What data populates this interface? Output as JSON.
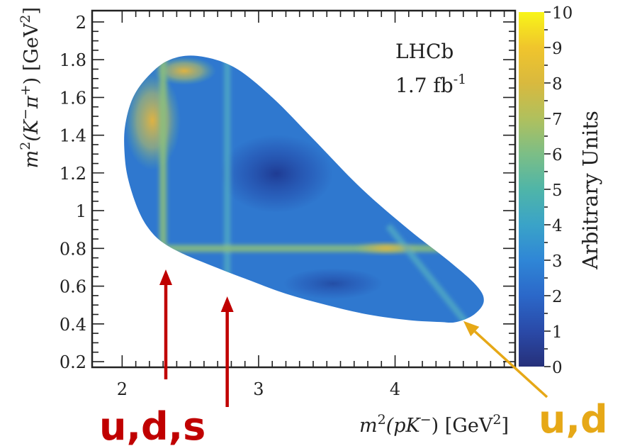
{
  "chart_data": {
    "type": "heatmap",
    "title": "",
    "xlabel": {
      "pre": "m",
      "sup": "2",
      "mid": "(pK",
      "sup2": "−",
      "post": ") [GeV",
      "sup3": "2",
      "end": "]"
    },
    "ylabel": {
      "pre": "m",
      "sup": "2",
      "mid": "(K",
      "sup2": "−",
      "mid2": "π",
      "sup3": "+",
      "post": ") [GeV",
      "sup4": "2",
      "end": "]"
    },
    "xlim": [
      1.78,
      4.88
    ],
    "ylim": [
      0.17,
      2.06
    ],
    "x_ticks": [
      "2",
      "3",
      "4"
    ],
    "y_ticks": [
      "0.2",
      "0.4",
      "0.6",
      "0.8",
      "1",
      "1.2",
      "1.4",
      "1.6",
      "1.8",
      "2"
    ],
    "colorbar": {
      "label": "Arbitrary Units",
      "min": 0,
      "max": 10,
      "ticks": [
        "0",
        "1",
        "2",
        "3",
        "4",
        "5",
        "6",
        "7",
        "8",
        "9",
        "10"
      ]
    },
    "experiment_label": {
      "line1": "LHCb",
      "line2_value": "1.7 fb",
      "line2_sup": "-1"
    },
    "dalitz_boundary": [
      [
        2.02,
        1.44
      ],
      [
        2.02,
        1.28
      ],
      [
        2.05,
        1.15
      ],
      [
        2.12,
        1.0
      ],
      [
        2.2,
        0.9
      ],
      [
        2.3,
        0.83
      ],
      [
        2.45,
        0.77
      ],
      [
        2.65,
        0.71
      ],
      [
        2.9,
        0.64
      ],
      [
        3.2,
        0.56
      ],
      [
        3.5,
        0.5
      ],
      [
        3.8,
        0.45
      ],
      [
        4.1,
        0.42
      ],
      [
        4.33,
        0.41
      ],
      [
        4.45,
        0.41
      ],
      [
        4.58,
        0.45
      ],
      [
        4.65,
        0.52
      ],
      [
        4.6,
        0.6
      ],
      [
        4.4,
        0.73
      ],
      [
        4.1,
        0.9
      ],
      [
        3.75,
        1.12
      ],
      [
        3.4,
        1.38
      ],
      [
        3.1,
        1.6
      ],
      [
        2.82,
        1.76
      ],
      [
        2.55,
        1.82
      ],
      [
        2.35,
        1.8
      ],
      [
        2.2,
        1.72
      ],
      [
        2.08,
        1.6
      ]
    ],
    "resonance_bands": [
      {
        "orientation": "vertical",
        "x": 2.3,
        "intensity": 6
      },
      {
        "orientation": "vertical",
        "x": 2.77,
        "intensity": 4
      },
      {
        "orientation": "horizontal",
        "y": 0.8,
        "intensity": 6
      },
      {
        "orientation": "diagonal",
        "intensity": 5
      }
    ],
    "annotations": [
      {
        "text": "u,d,s",
        "color": "#c00000",
        "arrows_to_x": [
          2.32,
          2.77
        ]
      },
      {
        "text": "u,d",
        "color": "#e6a817",
        "arrow_to": [
          4.48,
          0.43
        ]
      }
    ]
  }
}
